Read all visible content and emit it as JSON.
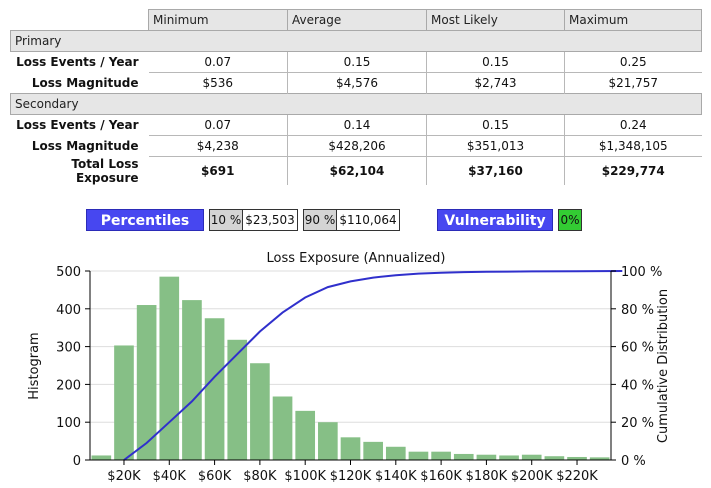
{
  "table": {
    "columns": [
      "Minimum",
      "Average",
      "Most Likely",
      "Maximum"
    ],
    "sections": [
      {
        "name": "Primary",
        "rows": [
          {
            "label": "Loss Events / Year",
            "values": [
              "0.07",
              "0.15",
              "0.15",
              "0.25"
            ]
          },
          {
            "label": "Loss Magnitude",
            "values": [
              "$536",
              "$4,576",
              "$2,743",
              "$21,757"
            ]
          }
        ]
      },
      {
        "name": "Secondary",
        "rows": [
          {
            "label": "Loss Events / Year",
            "values": [
              "0.07",
              "0.14",
              "0.15",
              "0.24"
            ]
          },
          {
            "label": "Loss Magnitude",
            "values": [
              "$4,238",
              "$428,206",
              "$351,013",
              "$1,348,105"
            ]
          }
        ]
      }
    ],
    "total": {
      "label": "Total Loss Exposure",
      "values": [
        "$691",
        "$62,104",
        "$37,160",
        "$229,774"
      ]
    }
  },
  "controls": {
    "percentiles_label": "Percentiles",
    "p_low_label": "10 %",
    "p_low_value": "$23,503",
    "p_high_label": "90 %",
    "p_high_value": "$110,064",
    "vulnerability_label": "Vulnerability",
    "vulnerability_value": "0%"
  },
  "colors": {
    "button": "#4747f0",
    "bar": "#86bf86",
    "cdf_line": "#3030cc",
    "vulnerability_value_bg": "#33cc33"
  },
  "chart_data": {
    "type": "bar",
    "title": "Loss Exposure (Annualized)",
    "ylabel": "Histogram",
    "y2label": "Cumulative Distribution",
    "ylim": [
      0,
      500
    ],
    "y2lim": [
      0,
      100
    ],
    "yticks": [
      "0",
      "100",
      "200",
      "300",
      "400",
      "500"
    ],
    "y2ticks": [
      "0 %",
      "20 %",
      "40 %",
      "60 %",
      "80 %",
      "100 %"
    ],
    "xticks": [
      "$20K",
      "$40K",
      "$60K",
      "$80K",
      "$100K",
      "$120K",
      "$140K",
      "$160K",
      "$180K",
      "$200K",
      "$220K"
    ],
    "bin_width": 10000,
    "bin_centers": [
      10000,
      20000,
      30000,
      40000,
      50000,
      60000,
      70000,
      80000,
      90000,
      100000,
      110000,
      120000,
      130000,
      140000,
      150000,
      160000,
      170000,
      180000,
      190000,
      200000,
      210000,
      220000,
      230000
    ],
    "series": [
      {
        "type": "bar",
        "values": [
          12,
          303,
          410,
          485,
          423,
          375,
          318,
          256,
          168,
          130,
          100,
          60,
          48,
          35,
          22,
          22,
          16,
          14,
          12,
          14,
          10,
          8,
          7
        ]
      },
      {
        "type": "line",
        "axis": "right",
        "x": [
          20000,
          30000,
          40000,
          50000,
          60000,
          70000,
          80000,
          90000,
          100000,
          110000,
          120000,
          130000,
          140000,
          150000,
          160000,
          170000,
          180000,
          200000,
          220000,
          240000
        ],
        "values": [
          0,
          9,
          20,
          31,
          44,
          56,
          68,
          78,
          86,
          91.5,
          94.5,
          96.5,
          97.8,
          98.6,
          99.1,
          99.4,
          99.6,
          99.8,
          99.9,
          100
        ]
      }
    ],
    "grid": true
  }
}
